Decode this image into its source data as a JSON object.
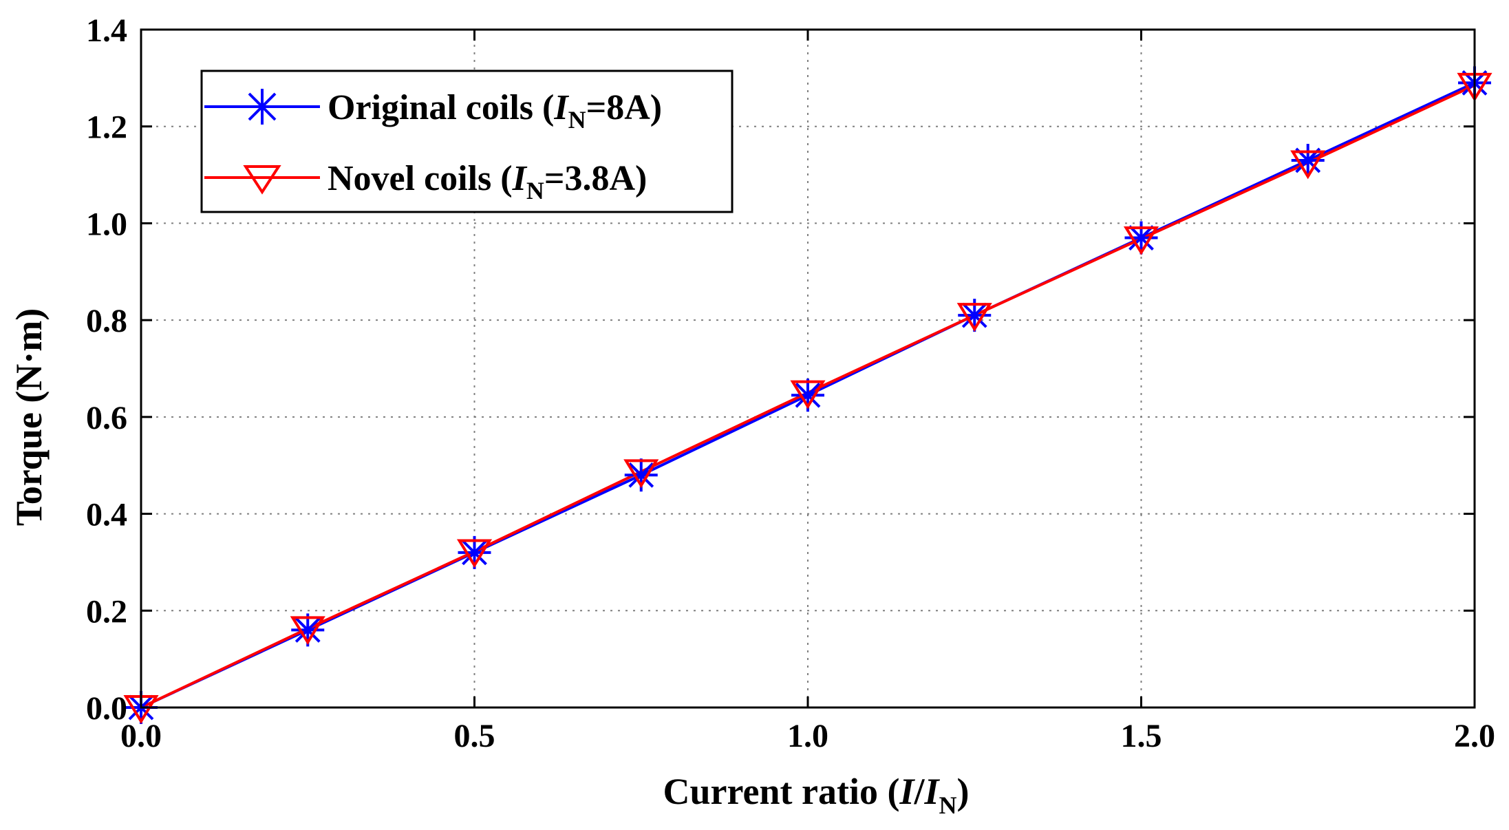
{
  "chart_data": {
    "type": "line",
    "xlabel": {
      "prefix": "Current ratio (",
      "var1": "I",
      "slash": "/",
      "var2": "I",
      "sub": "N",
      "suffix": ")"
    },
    "ylabel": "Torque (N·m)",
    "xlim": [
      0.0,
      2.0
    ],
    "ylim": [
      0.0,
      1.4
    ],
    "xticks": [
      0.0,
      0.5,
      1.0,
      1.5,
      2.0
    ],
    "yticks": [
      0.0,
      0.2,
      0.4,
      0.6,
      0.8,
      1.0,
      1.2,
      1.4
    ],
    "xtick_labels": [
      "0.0",
      "0.5",
      "1.0",
      "1.5",
      "2.0"
    ],
    "ytick_labels": [
      "0.0",
      "0.2",
      "0.4",
      "0.6",
      "0.8",
      "1.0",
      "1.2",
      "1.4"
    ],
    "grid": true,
    "legend_position": "top-left",
    "x": [
      0.0,
      0.25,
      0.5,
      0.75,
      1.0,
      1.25,
      1.5,
      1.75,
      2.0
    ],
    "series": [
      {
        "name": "Original coils (IN=8A)",
        "legend": {
          "prefix": "Original coils (",
          "var": "I",
          "sub": "N",
          "suffix": "=8A)"
        },
        "color": "#0000ff",
        "marker": "asterisk",
        "values": [
          0.0,
          0.16,
          0.32,
          0.48,
          0.645,
          0.81,
          0.97,
          1.13,
          1.29
        ]
      },
      {
        "name": "Novel coils (IN=3.8A)",
        "legend": {
          "prefix": "Novel coils (",
          "var": "I",
          "sub": "N",
          "suffix": "=3.8A)"
        },
        "color": "#ff0000",
        "marker": "triangle-down",
        "values": [
          0.0,
          0.163,
          0.322,
          0.487,
          0.65,
          0.81,
          0.968,
          1.125,
          1.285
        ]
      }
    ]
  }
}
